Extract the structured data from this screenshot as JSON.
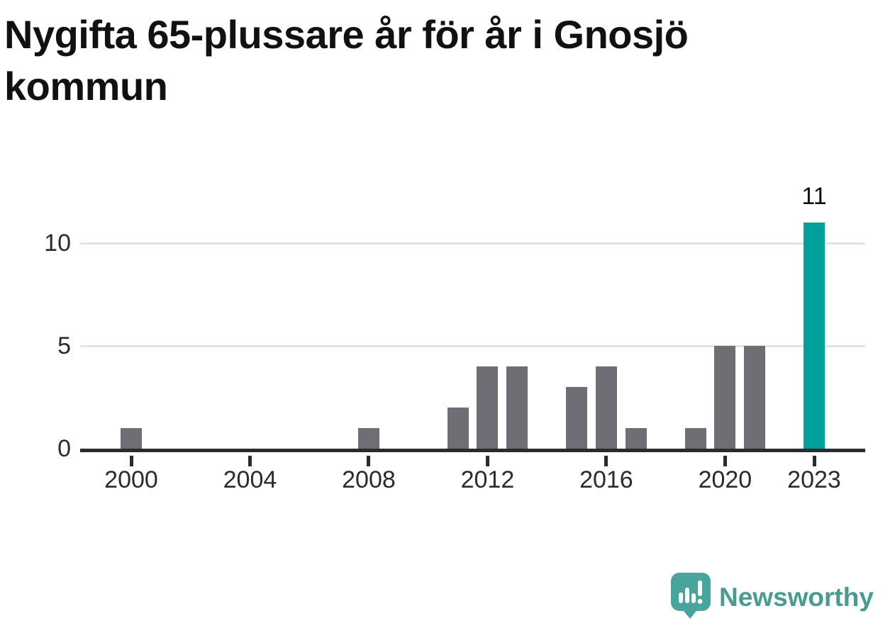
{
  "title_lines": [
    "Nygifta 65-plussare år för år i Gnosjö",
    "kommun"
  ],
  "chart_data": {
    "type": "bar",
    "title": "Nygifta 65-plussare år för år i Gnosjö kommun",
    "x": [
      2000,
      2001,
      2002,
      2003,
      2004,
      2005,
      2006,
      2007,
      2008,
      2009,
      2010,
      2011,
      2012,
      2013,
      2014,
      2015,
      2016,
      2017,
      2018,
      2019,
      2020,
      2021,
      2022,
      2023
    ],
    "values": [
      1,
      0,
      0,
      0,
      0,
      0,
      0,
      0,
      1,
      0,
      0,
      2,
      4,
      4,
      0,
      3,
      4,
      1,
      0,
      1,
      5,
      5,
      0,
      11
    ],
    "xlabel": "",
    "ylabel": "",
    "ylim": [
      0,
      11
    ],
    "yticks": [
      0,
      5,
      10
    ],
    "xticks": [
      2000,
      2004,
      2008,
      2012,
      2016,
      2020,
      2023
    ],
    "grid": "horizontal",
    "legend": "none",
    "highlight_x": 2023,
    "highlight_value_label": "11",
    "bar_color": "#6f6e74",
    "highlight_color": "#00a19a"
  },
  "colors": {
    "axis": "#2b2b2e",
    "grid": "#e4e4e4",
    "tick_text": "#2b2b2b",
    "title_text": "#111111",
    "brand_teal": "#489a93",
    "icon_teal": "#4aa49e"
  },
  "footer": {
    "brand": "Newsworthy"
  }
}
